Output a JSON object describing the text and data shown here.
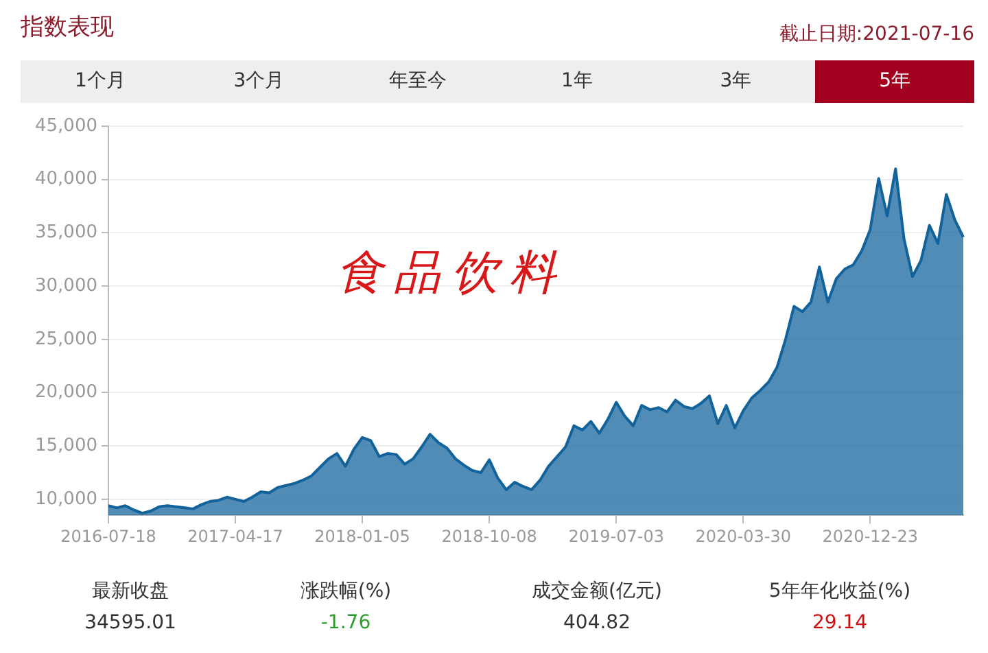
{
  "chart_data": {
    "type": "area",
    "title": "指数表现",
    "subtitle": "截止日期:2021-07-16",
    "annotations": [
      "1个月",
      "3个月",
      "年至今",
      "1年",
      "3年",
      "5年",
      "最新收盘",
      "34595.01",
      "涨跌幅(%)",
      "-1.76",
      "成交金额(亿元)",
      "404.82",
      "5年年化收益(%)",
      "29.14",
      "食品饮料"
    ],
    "categories": [
      "2016-07-18",
      null,
      null,
      null,
      null,
      null,
      null,
      null,
      null,
      null,
      null,
      null,
      null,
      null,
      null,
      "2017-04-17",
      null,
      null,
      null,
      null,
      null,
      null,
      null,
      null,
      null,
      null,
      null,
      null,
      null,
      null,
      "2018-01-05",
      null,
      null,
      null,
      null,
      null,
      null,
      null,
      null,
      null,
      null,
      null,
      null,
      null,
      null,
      "2018-10-08",
      null,
      null,
      null,
      null,
      null,
      null,
      null,
      null,
      null,
      null,
      null,
      null,
      null,
      null,
      "2019-07-03",
      null,
      null,
      null,
      null,
      null,
      null,
      null,
      null,
      null,
      null,
      null,
      null,
      null,
      null,
      "2020-03-30",
      null,
      null,
      null,
      null,
      null,
      null,
      null,
      null,
      null,
      null,
      null,
      null,
      null,
      null,
      "2020-12-23",
      null,
      null,
      null,
      null,
      null,
      null,
      null,
      null,
      null,
      null,
      null
    ],
    "series": [
      {
        "color": "#12629c",
        "values": [
          9400,
          9200,
          9400,
          9000,
          8700,
          8900,
          9300,
          9400,
          9300,
          9200,
          9100,
          9500,
          9800,
          9900,
          10200,
          10000,
          9800,
          10200,
          10700,
          10600,
          11100,
          11300,
          11500,
          11800,
          12200,
          13000,
          13800,
          14300,
          13100,
          14700,
          15800,
          15500,
          14000,
          14300,
          14200,
          13300,
          13800,
          14900,
          16100,
          15300,
          14800,
          13800,
          13200,
          12700,
          12500,
          13700,
          12000,
          10900,
          11600,
          11200,
          10900,
          11800,
          13100,
          14000,
          14900,
          16900,
          16500,
          17300,
          16200,
          17500,
          19100,
          17800,
          16900,
          18800,
          18400,
          18600,
          18200,
          19300,
          18700,
          18500,
          19000,
          19700,
          17100,
          18800,
          16700,
          18300,
          19500,
          20200,
          21000,
          22400,
          25000,
          28100,
          27600,
          28500,
          31800,
          28500,
          30700,
          31600,
          32000,
          33300,
          35300,
          40100,
          36600,
          41000,
          34400,
          30900,
          32400,
          35700,
          34000,
          38600,
          36200,
          34600
        ]
      }
    ],
    "ylim": [
      8500,
      45000
    ],
    "yticks": [
      {
        "value": 10000,
        "label": "10,000"
      },
      {
        "value": 15000,
        "label": "15,000"
      },
      {
        "value": 20000,
        "label": "20,000"
      },
      {
        "value": 25000,
        "label": "25,000"
      },
      {
        "value": 30000,
        "label": "30,000"
      },
      {
        "value": 35000,
        "label": "35,000"
      },
      {
        "value": 40000,
        "label": "40,000"
      },
      {
        "value": 45000,
        "label": "45,000"
      }
    ],
    "grid": "y"
  }
}
